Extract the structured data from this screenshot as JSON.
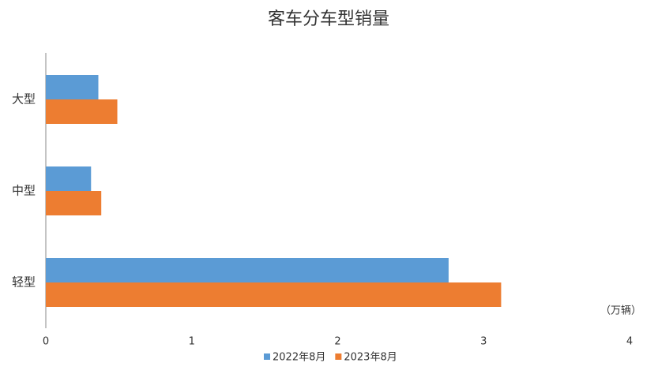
{
  "chart_data": {
    "type": "hbar",
    "title": "客车分车型销量",
    "categories": [
      "大型",
      "中型",
      "轻型"
    ],
    "series": [
      {
        "name": "2022年8月",
        "color": "#5b9bd5",
        "values": [
          0.36,
          0.31,
          2.76
        ]
      },
      {
        "name": "2023年8月",
        "color": "#ed7d31",
        "values": [
          0.49,
          0.38,
          3.12
        ]
      }
    ],
    "xlim": [
      0,
      4
    ],
    "xticks": [
      0,
      1,
      2,
      3,
      4
    ],
    "unit_label": "（万辆）",
    "grid": false,
    "legend": "bottom"
  }
}
